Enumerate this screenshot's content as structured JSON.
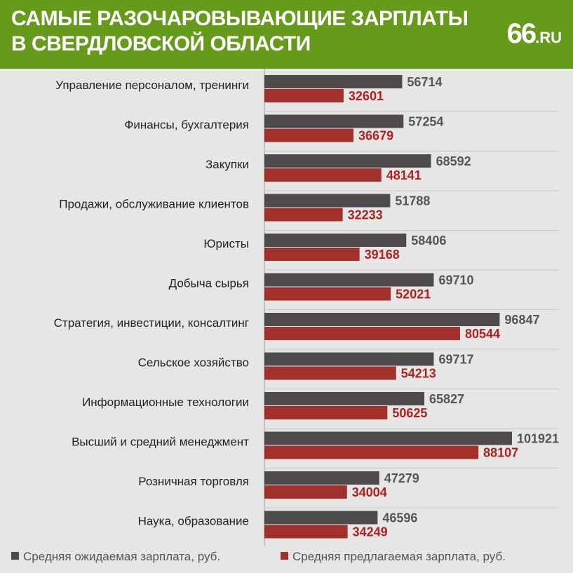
{
  "header": {
    "title_line1": "САМЫЕ РАЗОЧАРОВЫВАЮЩИЕ ЗАРПЛАТЫ",
    "title_line2": "В СВЕРДЛОВСКОЙ ОБЛАСТИ",
    "logo_main": "66",
    "logo_suffix": ".RU",
    "background_color": "#669a1b"
  },
  "legend": {
    "expected_label": "Средняя ожидаемая зарплата, руб.",
    "offered_label": "Средняя предлагаемая зарплата, руб."
  },
  "chart_data": {
    "type": "bar",
    "orientation": "horizontal",
    "title": "САМЫЕ РАЗОЧАРОВЫВАЮЩИЕ ЗАРПЛАТЫ В СВЕРДЛОВСКОЙ ОБЛАСТИ",
    "categories": [
      "Управление персоналом, тренинги",
      "Финансы, бухгалтерия",
      "Закупки",
      "Продажи, обслуживание клиентов",
      "Юристы",
      "Добыча сырья",
      "Стратегия, инвестиции, консалтинг",
      "Сельское хозяйство",
      "Информационные технологии",
      "Высший и средний менеджмент",
      "Розничная торговля",
      "Наука, образование"
    ],
    "series": [
      {
        "name": "Средняя ожидаемая зарплата, руб.",
        "color": "#4f4a4b",
        "label_color": "#555555",
        "values": [
          56714,
          57254,
          68592,
          51788,
          58406,
          69710,
          96847,
          69717,
          65827,
          101921,
          47279,
          46596
        ]
      },
      {
        "name": "Средняя предлагаемая зарплата, руб.",
        "color": "#a1312a",
        "label_color": "#b0201d",
        "values": [
          32601,
          36679,
          48141,
          32233,
          39168,
          52021,
          80544,
          54213,
          50625,
          88107,
          34004,
          34249
        ]
      }
    ],
    "xlim": [
      0,
      101921
    ],
    "grid": "horizontal separators",
    "legend_position": "bottom"
  }
}
